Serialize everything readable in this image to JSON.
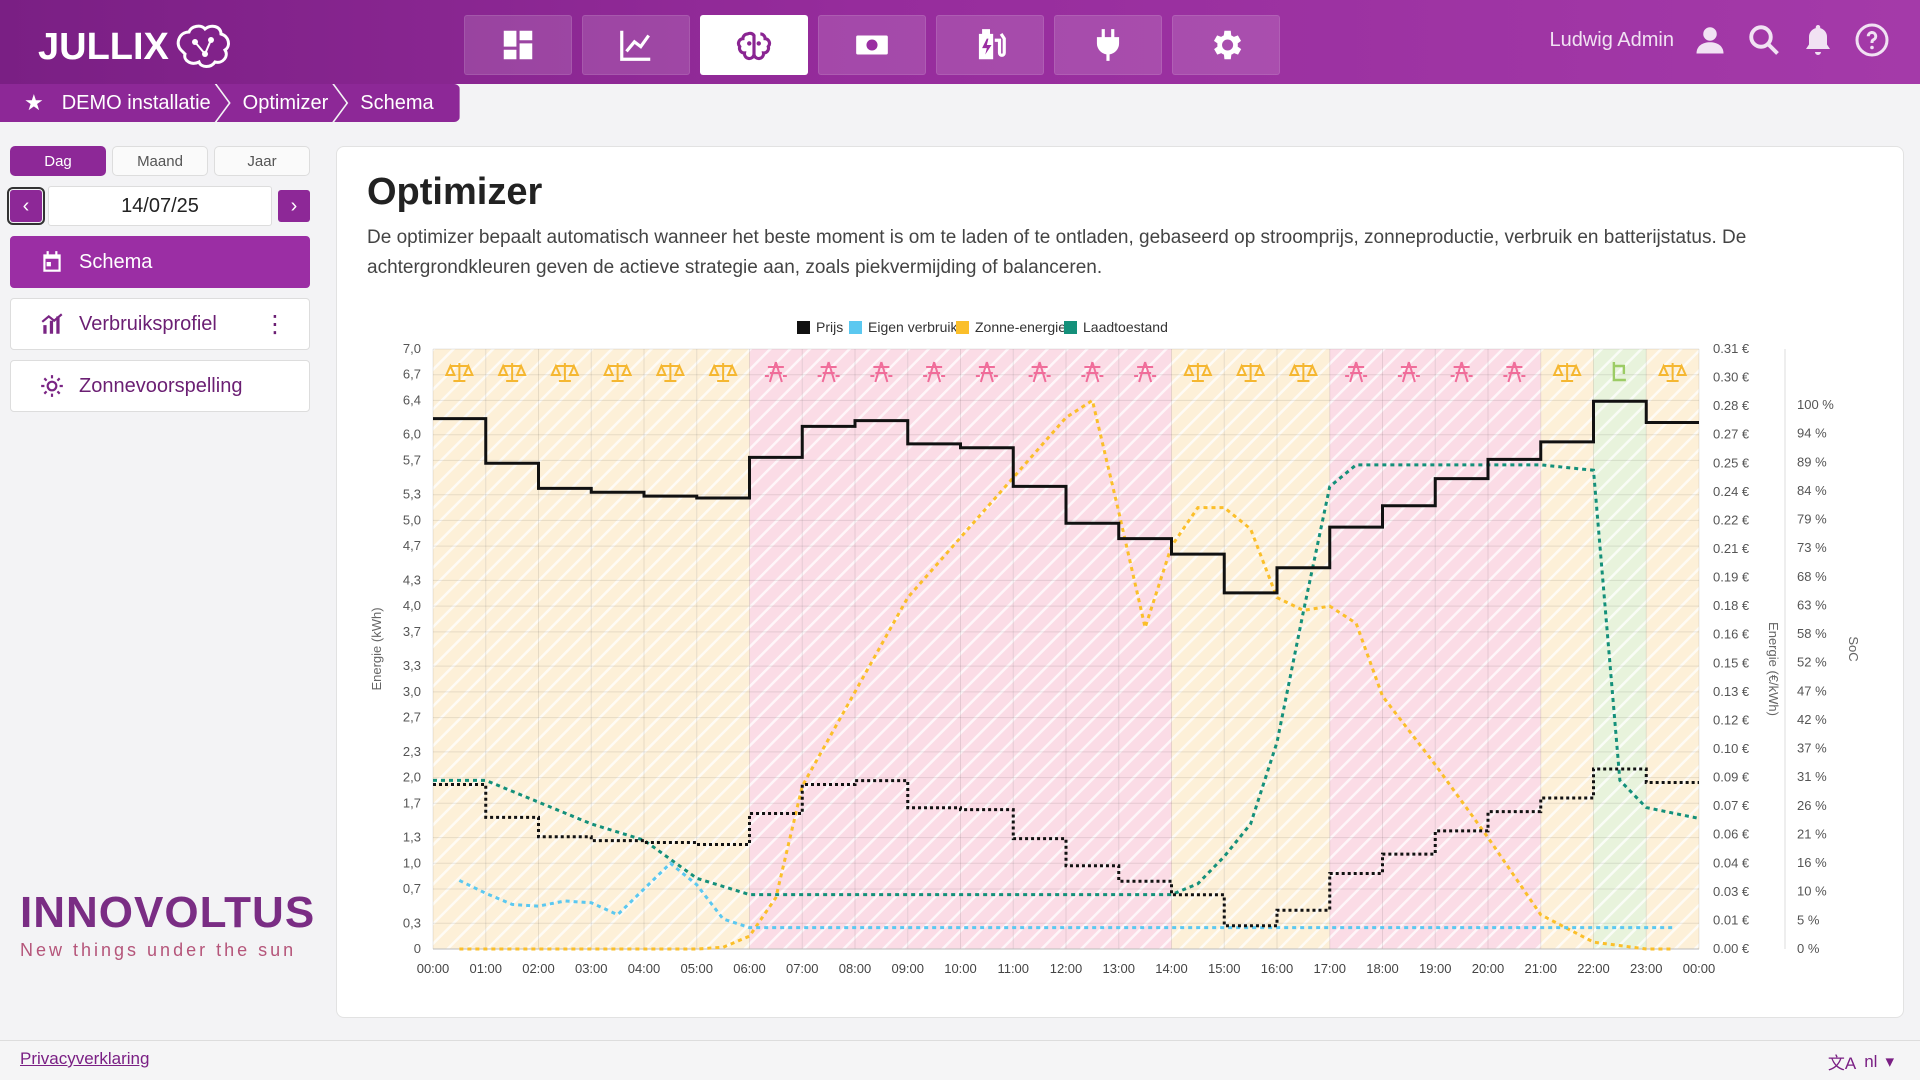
{
  "app": {
    "logo_text": "JULLIX"
  },
  "nav": {
    "buttons": [
      {
        "icon": "dashboard-icon",
        "active": false
      },
      {
        "icon": "line-chart-icon",
        "active": false
      },
      {
        "icon": "brain-icon",
        "active": true
      },
      {
        "icon": "money-icon",
        "active": false
      },
      {
        "icon": "battery-charge-icon",
        "active": false
      },
      {
        "icon": "plug-icon",
        "active": false
      },
      {
        "icon": "gear-icon",
        "active": false
      }
    ]
  },
  "user": {
    "name": "Ludwig Admin"
  },
  "breadcrumb": [
    "DEMO installatie",
    "Optimizer",
    "Schema"
  ],
  "sidebar": {
    "periods": [
      "Dag",
      "Maand",
      "Jaar"
    ],
    "active_period": "Dag",
    "date": "14/07/25",
    "items": [
      {
        "label": "Schema",
        "icon": "calendar-icon",
        "active": true
      },
      {
        "label": "Verbruiksprofiel",
        "icon": "bar-chart-icon",
        "active": false
      },
      {
        "label": "Zonnevoorspelling",
        "icon": "sun-icon",
        "active": false
      }
    ],
    "brand": {
      "name": "INNOVOLTUS",
      "tagline": "New things under the sun"
    }
  },
  "main": {
    "title": "Optimizer",
    "description": "De optimizer bepaalt automatisch wanneer het beste moment is om te laden of te ontladen, gebaseerd op stroomprijs, zonneproductie, verbruik en batterijstatus. De achtergrondkleuren geven de actieve strategie aan, zoals piekvermijding of balanceren."
  },
  "footer": {
    "privacy": "Privacyverklaring",
    "lang": "nl"
  },
  "colors": {
    "accent": "#8d2897",
    "price": "#111111",
    "consumption": "#5bc8f0",
    "solar": "#fbbf2a",
    "soc": "#14907a",
    "balance_bg": "#fdf0d8",
    "peak_bg": "#fbdce6",
    "charge_bg": "#e8f3dc"
  },
  "chart_data": {
    "type": "line",
    "legend": [
      "Prijs",
      "Eigen verbruik",
      "Zonne-energie",
      "Laadtoestand"
    ],
    "x_ticks": [
      "00:00",
      "01:00",
      "02:00",
      "03:00",
      "04:00",
      "05:00",
      "06:00",
      "07:00",
      "08:00",
      "09:00",
      "10:00",
      "11:00",
      "12:00",
      "13:00",
      "14:00",
      "15:00",
      "16:00",
      "17:00",
      "18:00",
      "19:00",
      "20:00",
      "21:00",
      "22:00",
      "23:00",
      "00:00"
    ],
    "y_left_label": "Energie (kWh)",
    "y_left_ticks": [
      "0",
      "0,3",
      "0,7",
      "1,0",
      "1,3",
      "1,7",
      "2,0",
      "2,3",
      "2,7",
      "3,0",
      "3,3",
      "3,7",
      "4,0",
      "4,3",
      "4,7",
      "5,0",
      "5,3",
      "5,7",
      "6,0",
      "6,4",
      "6,7",
      "7,0"
    ],
    "y_left_range": [
      0,
      7.0
    ],
    "y_price_label": "Energie (€/kWh)",
    "y_price_ticks": [
      "0.00 €",
      "0.01 €",
      "0.03 €",
      "0.04 €",
      "0.06 €",
      "0.07 €",
      "0.09 €",
      "0.10 €",
      "0.12 €",
      "0.13 €",
      "0.15 €",
      "0.16 €",
      "0.18 €",
      "0.19 €",
      "0.21 €",
      "0.22 €",
      "0.24 €",
      "0.25 €",
      "0.27 €",
      "0.28 €",
      "0.30 €",
      "0.31 €"
    ],
    "y_price_range": [
      0,
      0.31
    ],
    "y_soc_label": "SoC",
    "y_soc_ticks": [
      "0 %",
      "5 %",
      "10 %",
      "16 %",
      "21 %",
      "26 %",
      "31 %",
      "37 %",
      "42 %",
      "47 %",
      "52 %",
      "58 %",
      "63 %",
      "68 %",
      "73 %",
      "79 %",
      "84 %",
      "89 %",
      "94 %",
      "100 %"
    ],
    "y_soc_range": [
      0,
      100
    ],
    "strategies": [
      "balance",
      "balance",
      "balance",
      "balance",
      "balance",
      "balance",
      "peak",
      "peak",
      "peak",
      "peak",
      "peak",
      "peak",
      "peak",
      "peak",
      "balance",
      "balance",
      "balance",
      "peak",
      "peak",
      "peak",
      "peak",
      "balance",
      "charge",
      "balance"
    ],
    "series": [
      {
        "name": "Prijs",
        "axis": "price",
        "style": "step-solid",
        "values": [
          0.274,
          0.251,
          0.238,
          0.236,
          0.234,
          0.233,
          0.254,
          0.27,
          0.273,
          0.261,
          0.259,
          0.239,
          0.22,
          0.212,
          0.204,
          0.184,
          0.197,
          0.218,
          0.229,
          0.243,
          0.253,
          0.262,
          0.283,
          0.272
        ]
      },
      {
        "name": "Prijs",
        "axis": "price",
        "style": "step-dotted",
        "values": [
          0.085,
          0.068,
          0.058,
          0.056,
          0.055,
          0.054,
          0.07,
          0.085,
          0.087,
          0.073,
          0.072,
          0.057,
          0.043,
          0.035,
          0.028,
          0.012,
          0.02,
          0.039,
          0.049,
          0.061,
          0.071,
          0.078,
          0.093,
          0.086
        ]
      },
      {
        "name": "Eigen verbruik",
        "axis": "kwh",
        "x": [
          0.5,
          1,
          1.5,
          2,
          2.5,
          3,
          3.5,
          4,
          4.5,
          5,
          5.5,
          6,
          7,
          8,
          9,
          10,
          11,
          12,
          13,
          14,
          15,
          16,
          17,
          18,
          19,
          20,
          21,
          22,
          23,
          23.5
        ],
        "values": [
          0.8,
          0.65,
          0.52,
          0.5,
          0.56,
          0.54,
          0.4,
          0.7,
          1.0,
          0.75,
          0.35,
          0.25,
          0.25,
          0.25,
          0.25,
          0.25,
          0.25,
          0.25,
          0.25,
          0.25,
          0.25,
          0.25,
          0.25,
          0.25,
          0.25,
          0.25,
          0.25,
          0.25,
          0.25,
          0.25
        ]
      },
      {
        "name": "Zonne-energie",
        "axis": "kwh",
        "x": [
          0.5,
          1,
          2,
          3,
          4,
          5,
          5.5,
          6,
          6.5,
          7,
          8,
          9,
          10,
          11,
          12,
          12.5,
          13,
          13.5,
          14,
          14.5,
          15,
          15.5,
          16,
          16.5,
          17,
          17.5,
          18,
          19,
          20,
          21,
          22,
          23,
          23.5
        ],
        "values": [
          0,
          0,
          0,
          0,
          0,
          0,
          0.02,
          0.15,
          0.6,
          1.9,
          3.0,
          4.1,
          4.8,
          5.5,
          6.2,
          6.4,
          5.1,
          3.75,
          4.7,
          5.15,
          5.15,
          4.9,
          4.1,
          3.95,
          4.0,
          3.8,
          2.95,
          2.15,
          1.3,
          0.4,
          0.08,
          0,
          0
        ]
      },
      {
        "name": "Laadtoestand",
        "axis": "soc",
        "x": [
          0,
          1,
          2,
          3,
          4,
          5,
          6,
          7,
          8,
          9,
          10,
          11,
          12,
          13,
          14,
          14.5,
          15,
          15.5,
          16,
          16.5,
          17,
          17.5,
          18,
          19,
          20,
          21,
          22,
          22.5,
          23,
          24
        ],
        "values": [
          31,
          31,
          27,
          23,
          20,
          13,
          10,
          10,
          10,
          10,
          10,
          10,
          10,
          10,
          10,
          12,
          17,
          23,
          38,
          62,
          85,
          89,
          89,
          89,
          89,
          89,
          88,
          31,
          26,
          24
        ]
      }
    ]
  }
}
